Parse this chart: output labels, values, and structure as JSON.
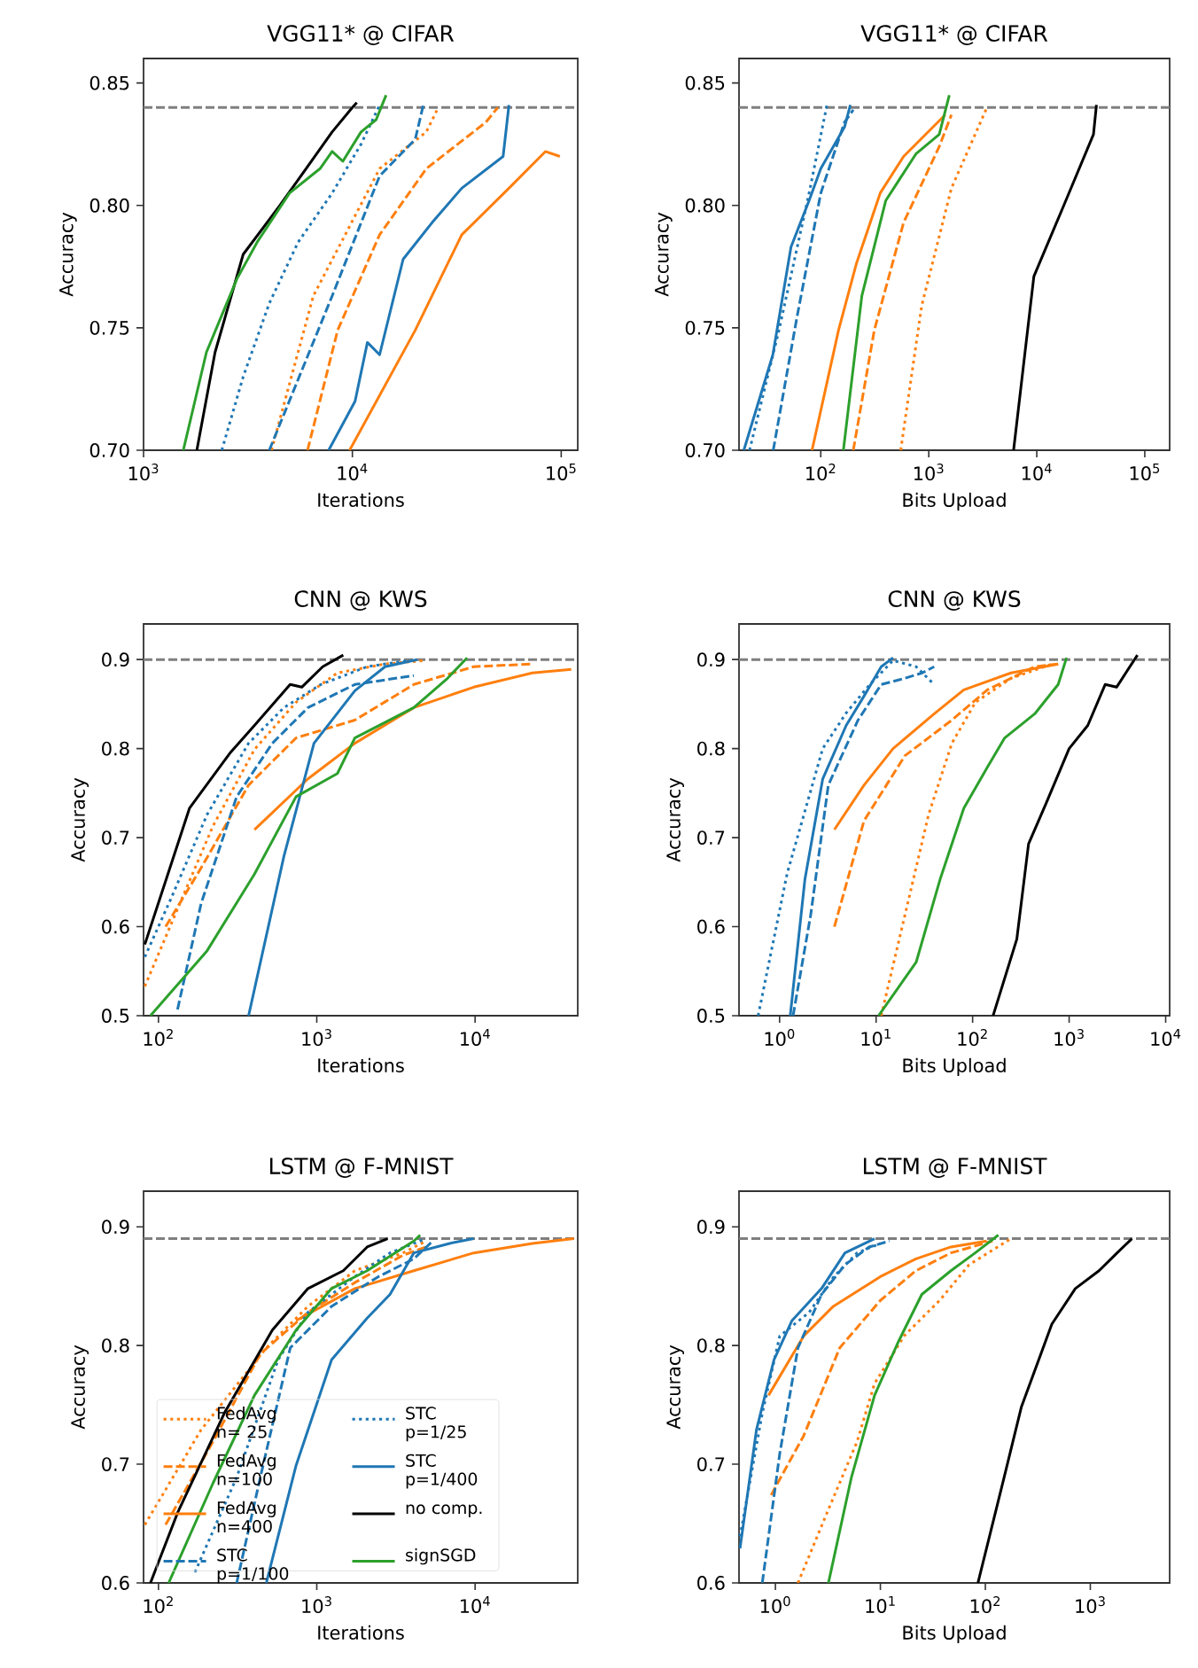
{
  "chart_data": [
    {
      "type": "line",
      "title": "VGG11* @ CIFAR",
      "xlabel": "Iterations",
      "ylabel": "Accuracy",
      "log": "x",
      "xlim": [
        1000,
        120000
      ],
      "ylim": [
        0.7,
        0.86
      ],
      "xticks": [
        {
          "value": 1000,
          "label": "10$^{3}$"
        },
        {
          "value": 10000,
          "label": "10$^{4}$"
        },
        {
          "value": 100000,
          "label": "10$^{5}$"
        }
      ],
      "yticks": [
        {
          "value": 0.7,
          "label": "0.70"
        },
        {
          "value": 0.75,
          "label": "0.75"
        },
        {
          "value": 0.8,
          "label": "0.80"
        },
        {
          "value": 0.85,
          "label": "0.85"
        }
      ],
      "ref_lines": [
        {
          "axis": "y",
          "value": 0.84,
          "color": "#7f7f7f",
          "line_style": "dashed"
        }
      ],
      "series": [
        {
          "color": "#ff7f0e",
          "line_style": "dotted",
          "x": [
            4100,
            6500,
            13500,
            22600,
            25800
          ],
          "values": [
            0.7,
            0.763,
            0.815,
            0.83,
            0.84
          ]
        },
        {
          "color": "#ff7f0e",
          "line_style": "dashed",
          "x": [
            6100,
            8500,
            13500,
            22600,
            43600,
            49700
          ],
          "values": [
            0.7,
            0.749,
            0.788,
            0.815,
            0.834,
            0.84
          ]
        },
        {
          "color": "#ff7f0e",
          "line_style": "solid",
          "x": [
            9700,
            20000,
            33400,
            56200,
            84000,
            98500
          ],
          "values": [
            0.7,
            0.749,
            0.788,
            0.807,
            0.822,
            0.82
          ]
        },
        {
          "color": "#1f77b4",
          "line_style": "dashed",
          "x": [
            4000,
            8000,
            13500,
            20000,
            22000
          ],
          "values": [
            0.7,
            0.763,
            0.812,
            0.827,
            0.842
          ]
        },
        {
          "color": "#1f77b4",
          "line_style": "dotted",
          "x": [
            2370,
            3000,
            4000,
            5500,
            8000,
            11000,
            13500
          ],
          "values": [
            0.7,
            0.73,
            0.76,
            0.785,
            0.805,
            0.825,
            0.841
          ]
        },
        {
          "color": "#1f77b4",
          "line_style": "solid",
          "x": [
            7700,
            10300,
            11800,
            13500,
            17500,
            24100,
            33400,
            52700,
            56200
          ],
          "values": [
            0.7,
            0.72,
            0.744,
            0.739,
            0.778,
            0.793,
            0.807,
            0.82,
            0.841
          ]
        },
        {
          "color": "#000000",
          "line_style": "solid",
          "x": [
            1800,
            2200,
            3000,
            4500,
            6000,
            8000,
            10000,
            10500
          ],
          "values": [
            0.7,
            0.74,
            0.78,
            0.8,
            0.815,
            0.83,
            0.84,
            0.842
          ]
        },
        {
          "color": "#2ca02c",
          "line_style": "solid",
          "x": [
            1550,
            2000,
            2800,
            3500,
            5000,
            7000,
            8000,
            9000,
            11000,
            13000,
            14500
          ],
          "values": [
            0.7,
            0.74,
            0.77,
            0.785,
            0.805,
            0.815,
            0.822,
            0.818,
            0.83,
            0.835,
            0.845
          ]
        }
      ]
    },
    {
      "type": "line",
      "title": "VGG11* @ CIFAR",
      "xlabel": "Bits Upload",
      "ylabel": "Accuracy",
      "log": "x",
      "xlim": [
        17.5,
        170000
      ],
      "ylim": [
        0.7,
        0.86
      ],
      "xticks": [
        {
          "value": 100,
          "label": "10$^{2}$"
        },
        {
          "value": 1000,
          "label": "10$^{3}$"
        },
        {
          "value": 10000,
          "label": "10$^{4}$"
        },
        {
          "value": 100000,
          "label": "10$^{5}$"
        }
      ],
      "yticks": [
        {
          "value": 0.7,
          "label": "0.70"
        },
        {
          "value": 0.75,
          "label": "0.75"
        },
        {
          "value": 0.8,
          "label": "0.80"
        },
        {
          "value": 0.85,
          "label": "0.85"
        }
      ],
      "ref_lines": [
        {
          "axis": "y",
          "value": 0.84,
          "color": "#7f7f7f",
          "line_style": "dashed"
        }
      ],
      "series": [
        {
          "color": "#ff7f0e",
          "line_style": "dotted",
          "x": [
            550,
            860,
            1620,
            3460
          ],
          "values": [
            0.7,
            0.759,
            0.807,
            0.84
          ]
        },
        {
          "color": "#ff7f0e",
          "line_style": "dashed",
          "x": [
            200,
            313,
            585,
            1250,
            1620
          ],
          "values": [
            0.7,
            0.749,
            0.793,
            0.824,
            0.837
          ]
        },
        {
          "color": "#ff7f0e",
          "line_style": "solid",
          "x": [
            83,
            146,
            213,
            355,
            585,
            1420
          ],
          "values": [
            0.7,
            0.749,
            0.776,
            0.805,
            0.82,
            0.837
          ]
        },
        {
          "color": "#1f77b4",
          "line_style": "dashed",
          "x": [
            36.3,
            60,
            100,
            166,
            200
          ],
          "values": [
            0.7,
            0.754,
            0.805,
            0.834,
            0.839
          ]
        },
        {
          "color": "#1f77b4",
          "line_style": "dotted",
          "x": [
            21.9,
            41,
            78,
            114
          ],
          "values": [
            0.7,
            0.749,
            0.805,
            0.841
          ]
        },
        {
          "color": "#1f77b4",
          "line_style": "solid",
          "x": [
            19.4,
            36,
            53,
            78,
            100,
            166,
            188
          ],
          "values": [
            0.7,
            0.739,
            0.783,
            0.802,
            0.815,
            0.832,
            0.841
          ]
        },
        {
          "color": "#000000",
          "line_style": "solid",
          "x": [
            6100,
            9400,
            17800,
            33500,
            35700
          ],
          "values": [
            0.7,
            0.771,
            0.8,
            0.829,
            0.841
          ]
        },
        {
          "color": "#2ca02c",
          "line_style": "solid",
          "x": [
            162,
            240,
            400,
            760,
            1250,
            1550
          ],
          "values": [
            0.7,
            0.763,
            0.802,
            0.821,
            0.829,
            0.845
          ]
        }
      ]
    },
    {
      "type": "line",
      "title": "CNN @ KWS",
      "xlabel": "Iterations",
      "ylabel": "Accuracy",
      "log": "x",
      "xlim": [
        80.5,
        44500
      ],
      "ylim": [
        0.5,
        0.94
      ],
      "xticks": [
        {
          "value": 100,
          "label": "10$^{2}$"
        },
        {
          "value": 1000,
          "label": "10$^{3}$"
        },
        {
          "value": 10000,
          "label": "10$^{4}$"
        }
      ],
      "yticks": [
        0.5,
        0.6,
        0.7,
        0.8,
        0.9
      ],
      "ref_lines": [
        {
          "axis": "y",
          "value": 0.9,
          "color": "#7f7f7f",
          "line_style": "dashed"
        }
      ],
      "series": [
        {
          "color": "#ff7f0e",
          "line_style": "dotted",
          "x": [
            82,
            132,
            221,
            404,
            740,
            1350,
            2700,
            4900
          ],
          "values": [
            0.533,
            0.62,
            0.713,
            0.799,
            0.852,
            0.885,
            0.895,
            0.899
          ]
        },
        {
          "color": "#ff7f0e",
          "line_style": "dashed",
          "x": [
            111,
            186,
            371,
            740,
            1740,
            4100,
            9800,
            23000
          ],
          "values": [
            0.6,
            0.666,
            0.759,
            0.812,
            0.832,
            0.872,
            0.892,
            0.895
          ]
        },
        {
          "color": "#ff7f0e",
          "line_style": "solid",
          "x": [
            404,
            880,
            1740,
            4100,
            9800,
            23000,
            40500
          ],
          "values": [
            0.709,
            0.766,
            0.806,
            0.846,
            0.869,
            0.885,
            0.889
          ]
        },
        {
          "color": "#1f77b4",
          "line_style": "dashed",
          "x": [
            132,
            186,
            312,
            524,
            880,
            1740,
            4100
          ],
          "values": [
            0.507,
            0.626,
            0.746,
            0.806,
            0.846,
            0.872,
            0.882
          ]
        },
        {
          "color": "#1f77b4",
          "line_style": "dotted",
          "x": [
            82,
            121,
            203,
            371,
            620,
            1060,
            2080,
            3800
          ],
          "values": [
            0.566,
            0.633,
            0.726,
            0.806,
            0.846,
            0.872,
            0.892,
            0.899
          ]
        },
        {
          "color": "#1f77b4",
          "line_style": "solid",
          "x": [
            371,
            620,
            960,
            1740,
            2700,
            4300
          ],
          "values": [
            0.5,
            0.679,
            0.806,
            0.865,
            0.892,
            0.9
          ]
        },
        {
          "color": "#000000",
          "line_style": "solid",
          "x": [
            82,
            157,
            286,
            404,
            679,
            804,
            1090,
            1470
          ],
          "values": [
            0.58,
            0.733,
            0.796,
            0.826,
            0.872,
            0.869,
            0.892,
            0.905
          ]
        },
        {
          "color": "#2ca02c",
          "line_style": "solid",
          "x": [
            89,
            203,
            404,
            740,
            1350,
            1740,
            4100,
            6700,
            8900
          ],
          "values": [
            0.5,
            0.573,
            0.659,
            0.746,
            0.772,
            0.812,
            0.846,
            0.879,
            0.902
          ]
        }
      ]
    },
    {
      "type": "line",
      "title": "CNN @ KWS",
      "xlabel": "Bits Upload",
      "ylabel": "Accuracy",
      "log": "x",
      "xlim": [
        0.38,
        11000
      ],
      "ylim": [
        0.5,
        0.94
      ],
      "xticks": [
        {
          "value": 1,
          "label": "10$^{0}$"
        },
        {
          "value": 10,
          "label": "10$^{1}$"
        },
        {
          "value": 100,
          "label": "10$^{2}$"
        },
        {
          "value": 1000,
          "label": "10$^{3}$"
        },
        {
          "value": 10000,
          "label": "10$^{4}$"
        }
      ],
      "yticks": [
        0.5,
        0.6,
        0.7,
        0.8,
        0.9
      ],
      "ref_lines": [
        {
          "axis": "y",
          "value": 0.9,
          "color": "#7f7f7f",
          "line_style": "dashed"
        }
      ],
      "series": [
        {
          "color": "#ff7f0e",
          "line_style": "dotted",
          "x": [
            11.3,
            19.9,
            35,
            61,
            107,
            250,
            670
          ],
          "values": [
            0.5,
            0.613,
            0.726,
            0.806,
            0.852,
            0.879,
            0.895
          ]
        },
        {
          "color": "#ff7f0e",
          "line_style": "dashed",
          "x": [
            3.7,
            7.5,
            19.9,
            61,
            142,
            440,
            770
          ],
          "values": [
            0.6,
            0.719,
            0.792,
            0.832,
            0.866,
            0.892,
            0.895
          ]
        },
        {
          "color": "#ff7f0e",
          "line_style": "solid",
          "x": [
            3.7,
            7.5,
            15,
            40,
            81,
            250,
            770
          ],
          "values": [
            0.709,
            0.759,
            0.8,
            0.839,
            0.866,
            0.885,
            0.895
          ]
        },
        {
          "color": "#1f77b4",
          "line_style": "dashed",
          "x": [
            1.38,
            2.1,
            3.2,
            6.5,
            11.3,
            19.9,
            30,
            40
          ],
          "values": [
            0.5,
            0.613,
            0.759,
            0.832,
            0.872,
            0.879,
            0.885,
            0.892
          ]
        },
        {
          "color": "#1f77b4",
          "line_style": "dotted",
          "x": [
            0.6,
            1.2,
            2.8,
            4.9,
            8.6,
            15,
            26,
            40
          ],
          "values": [
            0.5,
            0.66,
            0.8,
            0.84,
            0.872,
            0.899,
            0.892,
            0.872
          ]
        },
        {
          "color": "#1f77b4",
          "line_style": "solid",
          "x": [
            1.29,
            1.83,
            2.8,
            4.9,
            7.5,
            11.3,
            15
          ],
          "values": [
            0.5,
            0.653,
            0.766,
            0.826,
            0.859,
            0.892,
            0.902
          ]
        },
        {
          "color": "#000000",
          "line_style": "solid",
          "x": [
            163,
            287,
            380,
            580,
            1000,
            1560,
            2360,
            3100,
            5100
          ],
          "values": [
            0.5,
            0.586,
            0.693,
            0.739,
            0.8,
            0.826,
            0.872,
            0.869,
            0.905
          ]
        },
        {
          "color": "#2ca02c",
          "line_style": "solid",
          "x": [
            10.6,
            26,
            46,
            81,
            142,
            215,
            440,
            770,
            940
          ],
          "values": [
            0.5,
            0.56,
            0.653,
            0.733,
            0.779,
            0.812,
            0.839,
            0.872,
            0.902
          ]
        }
      ]
    },
    {
      "type": "line",
      "title": "LSTM @ F-MNIST",
      "xlabel": "Iterations",
      "ylabel": "Accuracy",
      "log": "x",
      "xlim": [
        80.5,
        44500
      ],
      "ylim": [
        0.6,
        0.93
      ],
      "legend": "bottom left",
      "xticks": [
        {
          "value": 100,
          "label": "10$^{2}$"
        },
        {
          "value": 1000,
          "label": "10$^{3}$"
        },
        {
          "value": 10000,
          "label": "10$^{4}$"
        }
      ],
      "yticks": [
        0.6,
        0.7,
        0.8,
        0.9
      ],
      "ref_lines": [
        {
          "axis": "y",
          "value": 0.89,
          "color": "#7f7f7f",
          "line_style": "dashed"
        }
      ],
      "series": [
        {
          "name": "FedAvg n= 25",
          "color": "#ff7f0e",
          "line_style": "dotted",
          "x": [
            82,
            186,
            480,
            880,
            1740,
            3500,
            4900
          ],
          "values": [
            0.649,
            0.729,
            0.798,
            0.833,
            0.863,
            0.878,
            0.888
          ]
        },
        {
          "name": "FedAvg n=100",
          "color": "#ff7f0e",
          "line_style": "dashed",
          "x": [
            111,
            221,
            440,
            880,
            1740,
            3500,
            4900
          ],
          "values": [
            0.649,
            0.719,
            0.793,
            0.828,
            0.853,
            0.876,
            0.883
          ]
        },
        {
          "name": "FedAvg n=400",
          "color": "#ff7f0e",
          "line_style": "solid",
          "x": [
            740,
            1740,
            4100,
            9800,
            23000,
            42000
          ],
          "values": [
            0.821,
            0.848,
            0.863,
            0.878,
            0.886,
            0.89
          ]
        },
        {
          "name": "STC p=1/100",
          "color": "#1f77b4",
          "line_style": "dashed",
          "x": [
            312,
            440,
            680,
            1240,
            2450,
            4100,
            5400
          ],
          "values": [
            0.6,
            0.689,
            0.798,
            0.833,
            0.858,
            0.873,
            0.888
          ]
        },
        {
          "name": "STC p=1/25",
          "color": "#1f77b4",
          "line_style": "dotted",
          "x": [
            170,
            312,
            570,
            880,
            1740,
            2900,
            4900
          ],
          "values": [
            0.609,
            0.689,
            0.788,
            0.828,
            0.858,
            0.878,
            0.89
          ]
        },
        {
          "name": "STC p=1/400",
          "color": "#1f77b4",
          "line_style": "solid",
          "x": [
            480,
            740,
            1240,
            2080,
            2900,
            4100,
            6900,
            9800
          ],
          "values": [
            0.6,
            0.699,
            0.788,
            0.823,
            0.843,
            0.878,
            0.886,
            0.89
          ]
        },
        {
          "name": "no comp.",
          "color": "#000000",
          "line_style": "solid",
          "x": [
            89,
            132,
            263,
            524,
            880,
            1470,
            2080,
            2800
          ],
          "values": [
            0.6,
            0.659,
            0.744,
            0.813,
            0.848,
            0.863,
            0.883,
            0.89
          ]
        },
        {
          "name": "signSGD",
          "color": "#2ca02c",
          "line_style": "solid",
          "x": [
            116,
            221,
            404,
            740,
            1240,
            2080,
            4100,
            4500
          ],
          "values": [
            0.6,
            0.684,
            0.758,
            0.813,
            0.848,
            0.863,
            0.888,
            0.893
          ]
        }
      ]
    },
    {
      "type": "line",
      "title": "LSTM @ F-MNIST",
      "xlabel": "Bits Upload",
      "ylabel": "Accuracy",
      "log": "x",
      "xlim": [
        0.45,
        5700
      ],
      "ylim": [
        0.6,
        0.93
      ],
      "xticks": [
        {
          "value": 1,
          "label": "10$^{0}$"
        },
        {
          "value": 10,
          "label": "10$^{1}$"
        },
        {
          "value": 100,
          "label": "10$^{2}$"
        },
        {
          "value": 1000,
          "label": "10$^{3}$"
        }
      ],
      "yticks": [
        0.6,
        0.7,
        0.8,
        0.9
      ],
      "ref_lines": [
        {
          "axis": "y",
          "value": 0.89,
          "color": "#7f7f7f",
          "line_style": "dashed"
        }
      ],
      "series": [
        {
          "color": "#ff7f0e",
          "line_style": "dotted",
          "x": [
            1.64,
            3.1,
            6,
            8.8,
            16.8,
            36.7,
            70,
            175
          ],
          "values": [
            0.6,
            0.659,
            0.719,
            0.768,
            0.808,
            0.838,
            0.868,
            0.89
          ]
        },
        {
          "color": "#ff7f0e",
          "line_style": "dashed",
          "x": [
            0.91,
            1.86,
            4.1,
            10,
            21.8,
            47,
            117
          ],
          "values": [
            0.674,
            0.724,
            0.798,
            0.838,
            0.863,
            0.878,
            0.888
          ]
        },
        {
          "color": "#ff7f0e",
          "line_style": "solid",
          "x": [
            0.86,
            1.86,
            3.56,
            10,
            21.8,
            47,
            103
          ],
          "values": [
            0.758,
            0.808,
            0.833,
            0.858,
            0.873,
            0.883,
            0.888
          ]
        },
        {
          "color": "#1f77b4",
          "line_style": "dashed",
          "x": [
            0.75,
            1.1,
            1.64,
            2.75,
            4.6,
            7.8,
            12.2
          ],
          "values": [
            0.6,
            0.709,
            0.798,
            0.843,
            0.868,
            0.883,
            0.888
          ]
        },
        {
          "color": "#1f77b4",
          "line_style": "dotted",
          "x": [
            0.46,
            0.75,
            1.1,
            2.1,
            3.6,
            6,
            10
          ],
          "values": [
            0.639,
            0.743,
            0.808,
            0.828,
            0.858,
            0.878,
            0.886
          ]
        },
        {
          "color": "#1f77b4",
          "line_style": "solid",
          "x": [
            0.46,
            0.66,
            0.97,
            1.44,
            2.75,
            4.6,
            8.8
          ],
          "values": [
            0.629,
            0.729,
            0.788,
            0.821,
            0.848,
            0.878,
            0.89
          ]
        },
        {
          "color": "#000000",
          "line_style": "solid",
          "x": [
            85,
            151,
            220,
            430,
            720,
            1210,
            1800,
            2490
          ],
          "values": [
            0.6,
            0.689,
            0.748,
            0.818,
            0.848,
            0.863,
            0.878,
            0.89
          ]
        },
        {
          "color": "#2ca02c",
          "line_style": "solid",
          "x": [
            3.2,
            5.3,
            8.8,
            14.8,
            24.8,
            47,
            80,
            133
          ],
          "values": [
            0.6,
            0.689,
            0.758,
            0.803,
            0.843,
            0.863,
            0.878,
            0.893
          ]
        }
      ]
    }
  ]
}
